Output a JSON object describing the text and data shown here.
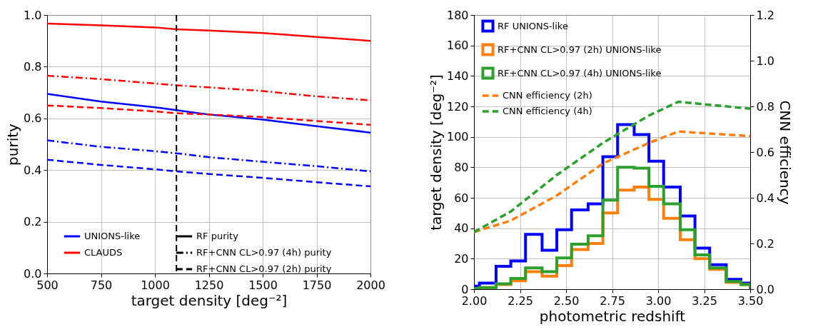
{
  "chart_data": [
    {
      "type": "line",
      "xlabel": "target density [deg⁻²]",
      "ylabel": "purity",
      "x": [
        500,
        750,
        1000,
        1100,
        1250,
        1500,
        1750,
        2000
      ],
      "series": [
        {
          "name": "UNIONS-like",
          "color": "#0000ff",
          "line_style": "solid",
          "values": [
            0.695,
            0.665,
            0.643,
            0.632,
            0.615,
            0.595,
            0.57,
            0.545
          ]
        },
        {
          "name": "CLAUDS",
          "color": "#ff0000",
          "line_style": "solid",
          "values": [
            0.967,
            0.96,
            0.952,
            0.945,
            0.94,
            0.93,
            0.915,
            0.9
          ]
        },
        {
          "color": "#0000ff",
          "line_style": "dashdot",
          "values": [
            0.515,
            0.49,
            0.473,
            0.465,
            0.45,
            0.432,
            0.415,
            0.395
          ]
        },
        {
          "color": "#ff0000",
          "line_style": "dashdot",
          "values": [
            0.765,
            0.752,
            0.735,
            0.728,
            0.72,
            0.706,
            0.685,
            0.67
          ]
        },
        {
          "color": "#0000ff",
          "line_style": "dashed",
          "values": [
            0.44,
            0.42,
            0.403,
            0.395,
            0.385,
            0.37,
            0.353,
            0.337
          ]
        },
        {
          "color": "#ff0000",
          "line_style": "dashed",
          "values": [
            0.65,
            0.64,
            0.627,
            0.62,
            0.615,
            0.605,
            0.59,
            0.575
          ]
        },
        {
          "name": "RF purity",
          "color": "#000000",
          "line_style": "solid",
          "values": [
            null,
            null,
            null,
            null,
            null,
            null,
            null,
            null
          ]
        },
        {
          "name": "RF+CNN CL>0.97 (4h) purity",
          "color": "#000000",
          "line_style": "dashdot",
          "values": [
            null,
            null,
            null,
            null,
            null,
            null,
            null,
            null
          ]
        },
        {
          "name": "RF+CNN CL>0.97 (2h) purity",
          "color": "#000000",
          "line_style": "dashed",
          "values": [
            null,
            null,
            null,
            null,
            null,
            null,
            null,
            null
          ]
        }
      ],
      "xlim": [
        500,
        2000
      ],
      "xticks": [
        500,
        750,
        1000,
        1250,
        1500,
        1750,
        2000
      ],
      "ylim": [
        0,
        1
      ],
      "yticks": [
        {
          "value": 0,
          "label": "0.0"
        },
        0.2,
        0.4,
        0.6,
        0.8,
        {
          "value": 1,
          "label": "1.0"
        }
      ],
      "ref_lines": [
        {
          "axis": "x",
          "value": 1100,
          "color": "#000000",
          "line_style": "dashed"
        }
      ],
      "grid": true,
      "legend": "bottom"
    },
    {
      "type": "histogram",
      "xlabel": "photometric redshift",
      "ylabel": "target density [deg⁻²]",
      "y2label": "CNN efficiency",
      "bins": [
        2.0,
        2.03,
        2.12,
        2.2,
        2.28,
        2.37,
        2.45,
        2.53,
        2.62,
        2.7,
        2.78,
        2.87,
        2.95,
        3.03,
        3.12,
        3.2,
        3.28,
        3.37,
        3.45,
        3.5
      ],
      "series": [
        {
          "name": "RF UNIONS-like",
          "color": "#0000ff",
          "values": [
            2,
            4,
            15,
            18.5,
            36,
            25.5,
            39,
            52,
            56,
            87,
            108,
            101.5,
            84,
            67,
            48,
            27,
            16,
            6.5,
            4
          ]
        },
        {
          "name": "RF+CNN CL>0.97 (2h) UNIONS-like",
          "color": "#ff7f0e",
          "values": [
            0.5,
            1,
            3,
            5.5,
            11.5,
            8.5,
            15.5,
            26,
            30,
            50,
            65,
            67,
            59,
            46.5,
            32.5,
            20,
            13,
            4.5,
            3
          ]
        },
        {
          "name": "RF+CNN CL>0.97 (4h) UNIONS-like",
          "color": "#2ca02c",
          "values": [
            0.5,
            1,
            3.5,
            7,
            14,
            11.5,
            20.5,
            29.5,
            35,
            58.5,
            80,
            79.5,
            67.5,
            56,
            39,
            22.5,
            14,
            5,
            3
          ]
        },
        {
          "name": "CNN efficiency (2h)",
          "type": "line",
          "axis": "y2",
          "line_style": "dashed",
          "color": "#ff7f0e",
          "x": [
            2.0,
            2.2,
            2.45,
            2.7,
            2.95,
            3.11,
            3.5
          ],
          "values": [
            0.25,
            0.3,
            0.41,
            0.55,
            0.64,
            0.69,
            0.67
          ]
        },
        {
          "name": "CNN efficiency (4h)",
          "type": "line",
          "axis": "y2",
          "line_style": "dashed",
          "color": "#2ca02c",
          "x": [
            2.0,
            2.2,
            2.45,
            2.7,
            2.95,
            3.11,
            3.5
          ],
          "values": [
            0.25,
            0.34,
            0.5,
            0.64,
            0.76,
            0.82,
            0.79
          ]
        }
      ],
      "xlim": [
        2.0,
        3.5
      ],
      "xticks": [
        {
          "value": 2,
          "label": "2.00"
        },
        2.25,
        {
          "value": 2.5,
          "label": "2.50"
        },
        2.75,
        {
          "value": 3,
          "label": "3.00"
        },
        3.25,
        {
          "value": 3.5,
          "label": "3.50"
        }
      ],
      "ylim": [
        0,
        180
      ],
      "yticks": [
        0,
        20,
        40,
        60,
        80,
        100,
        120,
        140,
        160,
        180
      ],
      "y2lim": [
        0,
        1.2
      ],
      "y2ticks": [
        {
          "value": 0,
          "label": "0.0"
        },
        0.2,
        0.4,
        0.6,
        0.8,
        {
          "value": 1,
          "label": "1.0"
        },
        1.2
      ],
      "grid": true,
      "legend": "top left"
    }
  ]
}
